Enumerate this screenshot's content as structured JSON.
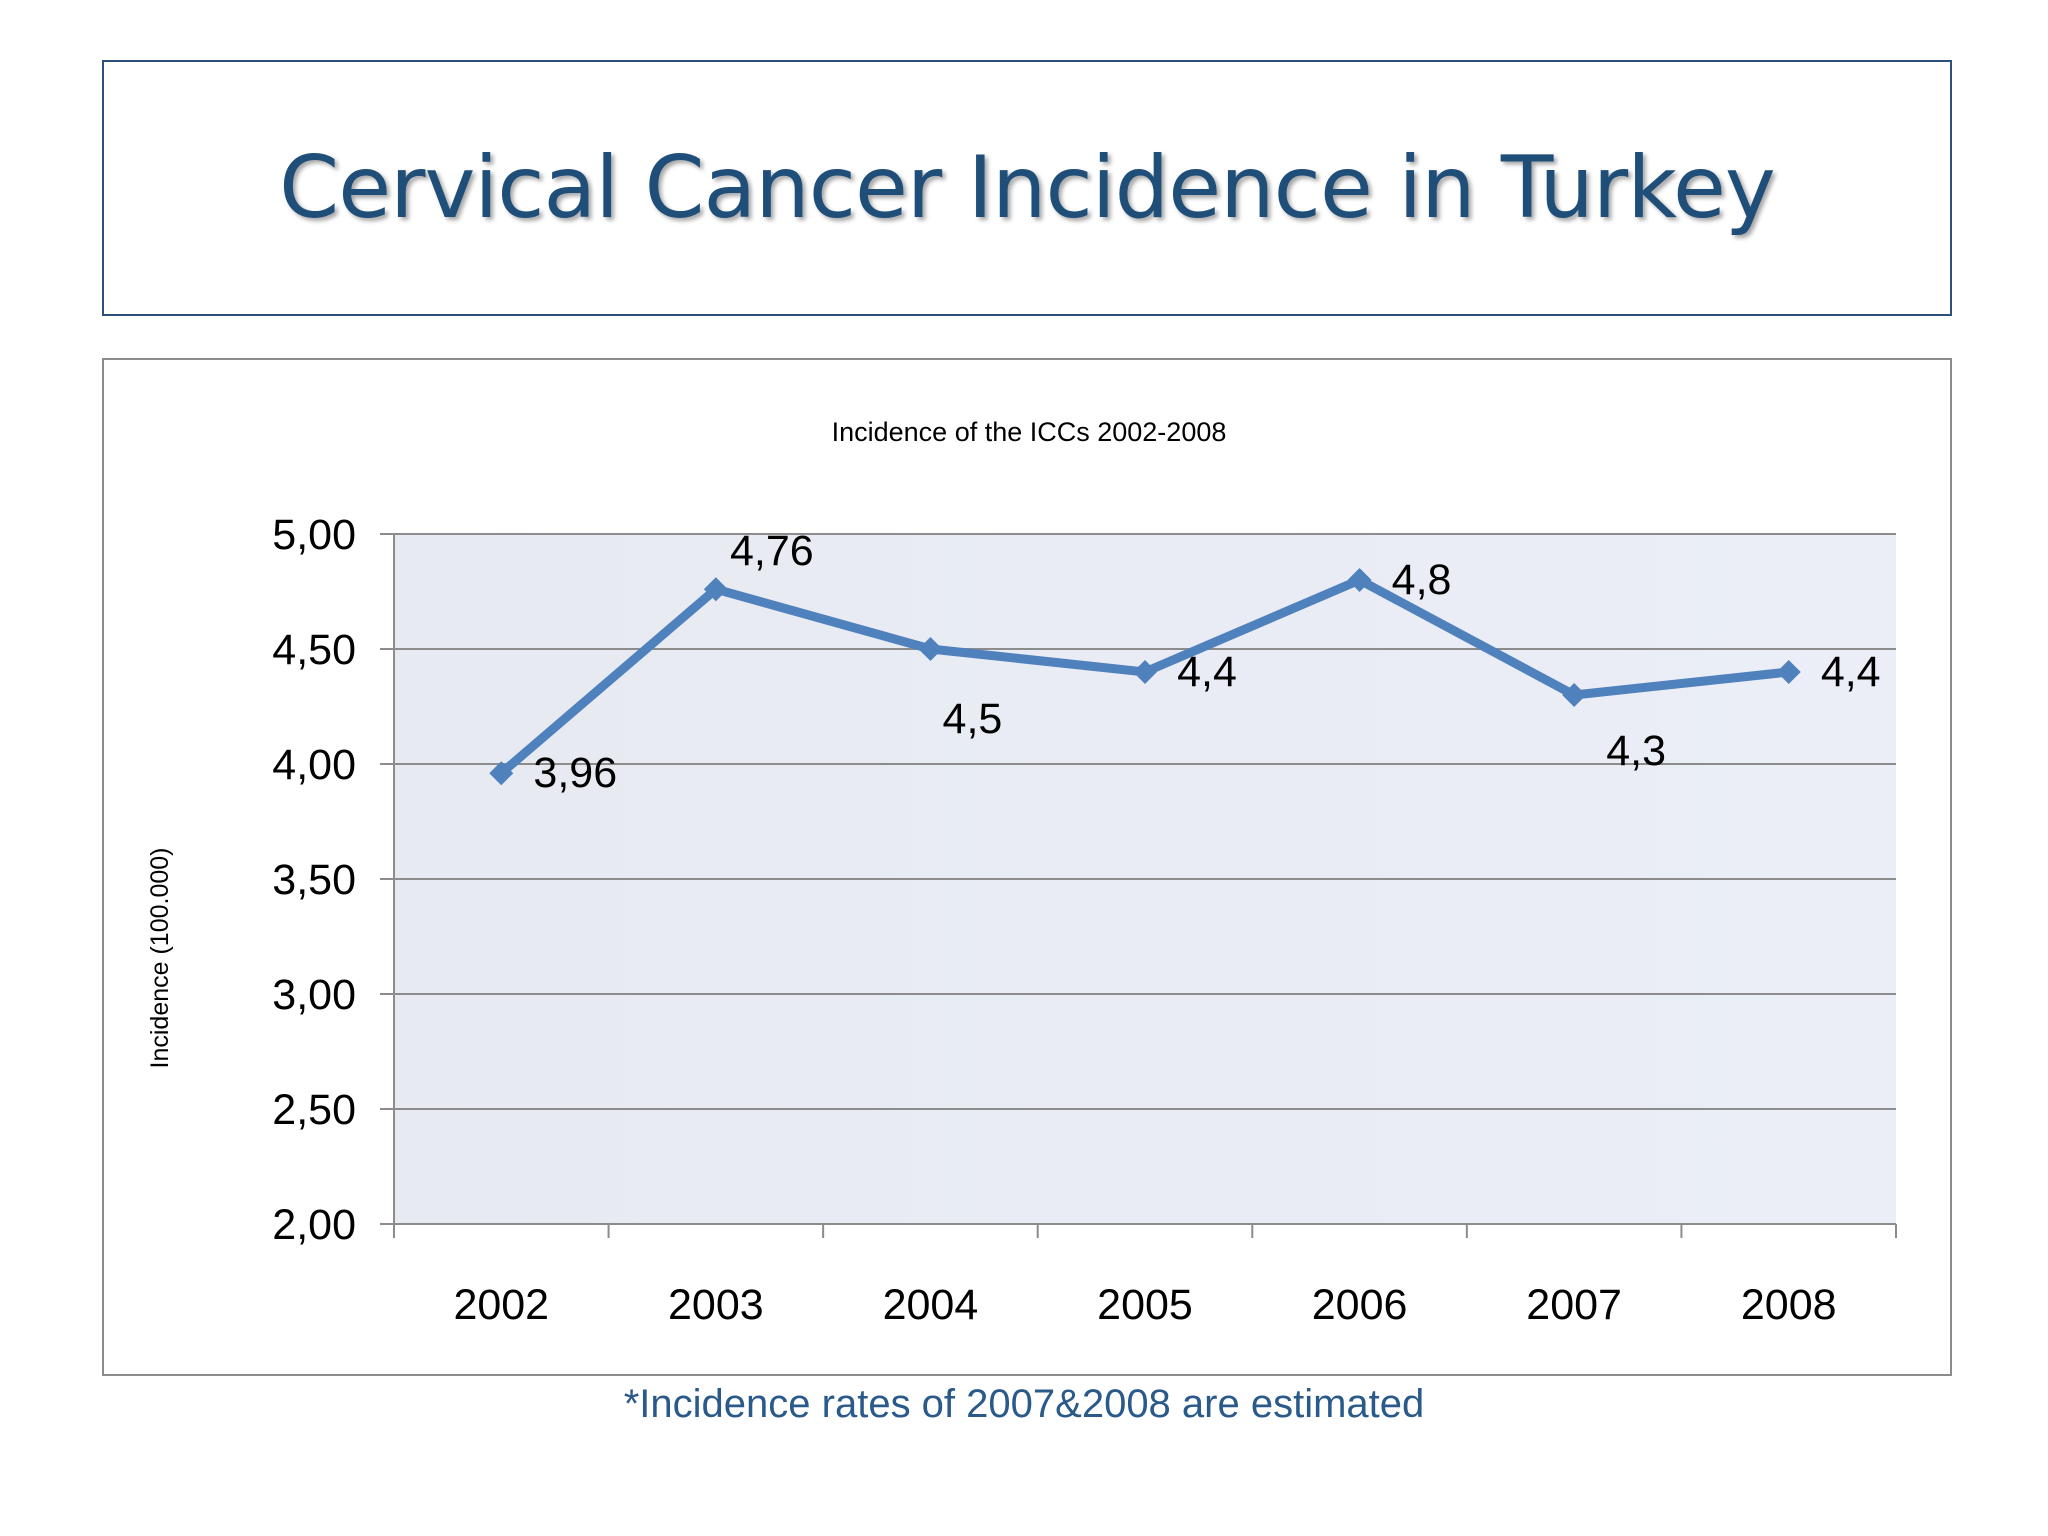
{
  "slide": {
    "title": "Cervical Cancer Incidence in Turkey",
    "footnote": "*Incidence rates of 2007&2008 are estimated"
  },
  "colors": {
    "title": "#1f4e79",
    "series_line": "#4f81bd",
    "plot_background": "#e9ecf4",
    "gridline": "#8c8c8c",
    "footnote": "#2a5a8a"
  },
  "chart_data": {
    "type": "line",
    "title": "Incidence of the ICCs 2002-2008",
    "xlabel": "",
    "ylabel": "Incidence (100.000)",
    "categories": [
      "2002",
      "2003",
      "2004",
      "2005",
      "2006",
      "2007",
      "2008"
    ],
    "series": [
      {
        "values": [
          3.96,
          4.76,
          4.5,
          4.4,
          4.8,
          4.3,
          4.4
        ],
        "data_labels": [
          "3,96",
          "4,76",
          "4,5",
          "4,4",
          "4,8",
          "4,3",
          "4,4"
        ],
        "marker": "diamond"
      }
    ],
    "ylim": [
      2.0,
      5.0
    ],
    "yticks": [
      2.0,
      2.5,
      3.0,
      3.5,
      4.0,
      4.5,
      5.0
    ],
    "ytick_labels": [
      "2,00",
      "2,50",
      "3,00",
      "3,50",
      "4,00",
      "4,50",
      "5,00"
    ],
    "grid": "horizontal",
    "legend": "none"
  }
}
